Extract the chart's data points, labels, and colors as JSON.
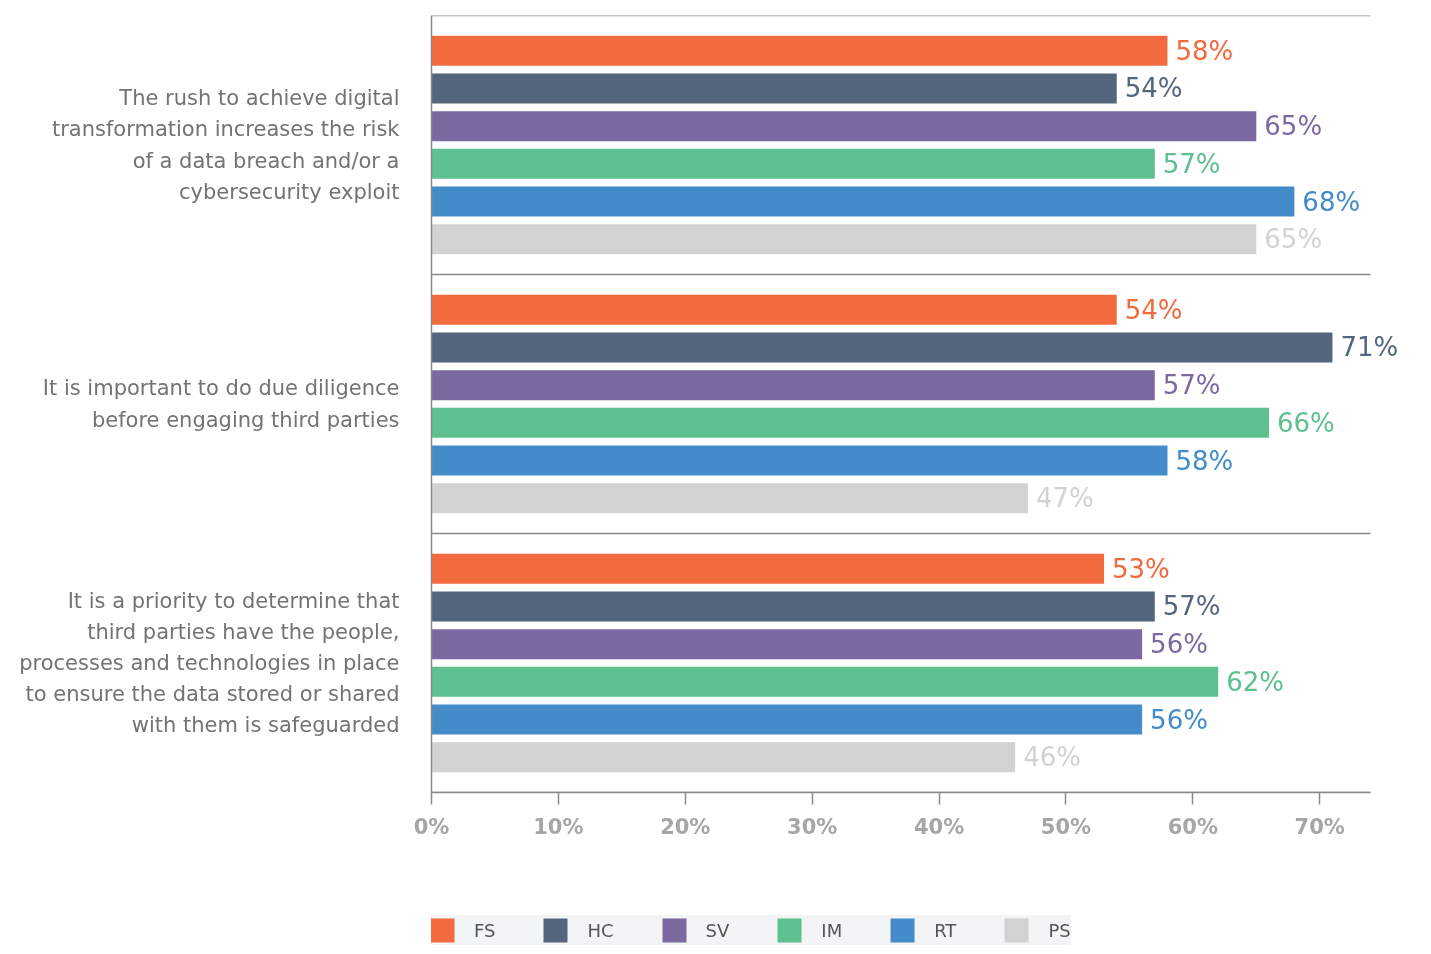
{
  "chart_data": {
    "type": "bar",
    "orientation": "horizontal",
    "categories": [
      "The rush to achieve digital transformation increases the risk of a data breach and/or a cybersecurity exploit",
      "It is important to do due diligence before engaging third parties",
      "It is a priority to determine that third parties have the people, processes and technologies in place to ensure the data stored or shared with them is safeguarded"
    ],
    "series": [
      {
        "name": "FS",
        "color": "#f26a3d",
        "values": [
          58,
          54,
          53
        ],
        "value_labels": [
          "58%",
          "54%",
          "53%"
        ]
      },
      {
        "name": "HC",
        "color": "#53667e",
        "values": [
          54,
          71,
          57
        ],
        "value_labels": [
          "54%",
          "71%",
          "57%"
        ]
      },
      {
        "name": "SV",
        "color": "#7c69a2",
        "values": [
          65,
          57,
          56
        ],
        "value_labels": [
          "65%",
          "57%",
          "56%"
        ]
      },
      {
        "name": "IM",
        "color": "#5dc08e",
        "values": [
          57,
          66,
          62
        ],
        "value_labels": [
          "57%",
          "66%",
          "62%"
        ]
      },
      {
        "name": "RT",
        "color": "#448bca",
        "values": [
          68,
          58,
          56
        ],
        "value_labels": [
          "68%",
          "58%",
          "56%"
        ]
      },
      {
        "name": "PS",
        "color": "#d2d2d2",
        "values": [
          65,
          47,
          46
        ],
        "value_labels": [
          "65%",
          "47%",
          "46%"
        ]
      }
    ],
    "xlim": [
      0,
      74
    ],
    "xticks": [
      {
        "value": 0,
        "label": "0%"
      },
      {
        "value": 10,
        "label": "10%"
      },
      {
        "value": 20,
        "label": "20%"
      },
      {
        "value": 30,
        "label": "30%"
      },
      {
        "value": 40,
        "label": "40%"
      },
      {
        "value": 50,
        "label": "50%"
      },
      {
        "value": 60,
        "label": "60%"
      },
      {
        "value": 70,
        "label": "70%"
      }
    ],
    "grid": "y",
    "legend": "bottom"
  }
}
